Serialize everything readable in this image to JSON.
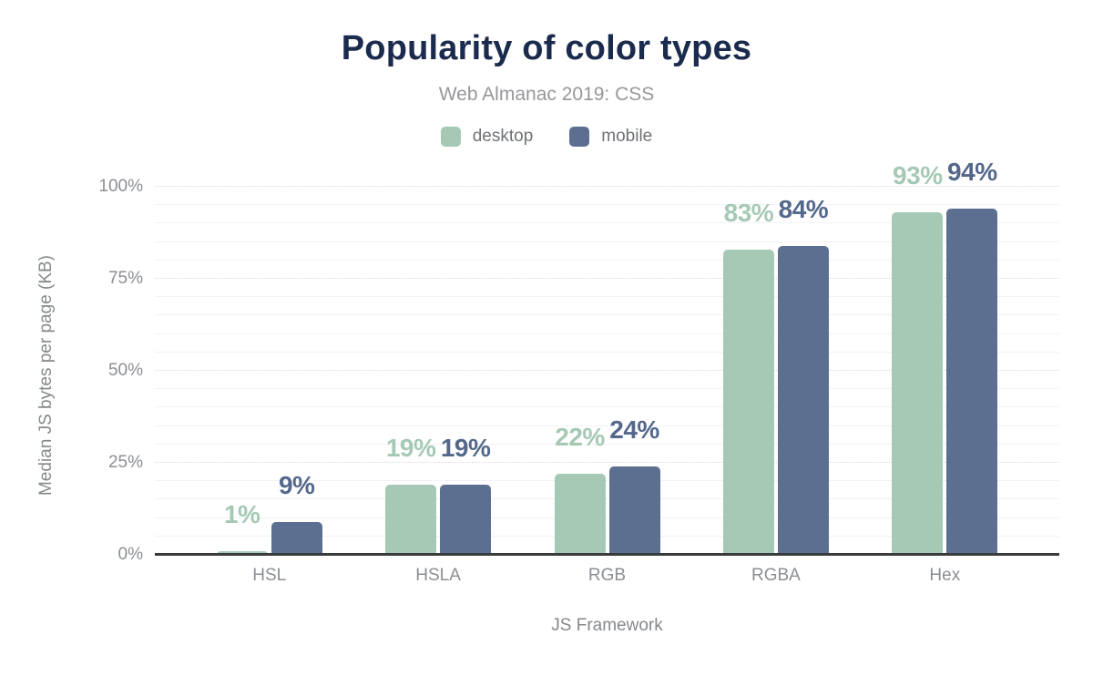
{
  "chart_data": {
    "type": "bar",
    "title": "Popularity of color types",
    "subtitle": "Web Almanac 2019: CSS",
    "categories": [
      "HSL",
      "HSLA",
      "RGB",
      "RGBA",
      "Hex"
    ],
    "series": [
      {
        "name": "desktop",
        "color": "#a5c9b4",
        "label_color": "#a5c9b4",
        "values": [
          1,
          19,
          22,
          83,
          93
        ],
        "labels": [
          "1%",
          "19%",
          "22%",
          "83%",
          "93%"
        ]
      },
      {
        "name": "mobile",
        "color": "#5c6f90",
        "label_color": "#54688c",
        "values": [
          9,
          19,
          24,
          84,
          94
        ],
        "labels": [
          "9%",
          "19%",
          "24%",
          "84%",
          "94%"
        ]
      }
    ],
    "xlabel": "JS Framework",
    "ylabel": "Median JS bytes per page (KB)",
    "ylim": [
      0,
      100
    ],
    "yticks": [
      {
        "value": 0,
        "label": "0%"
      },
      {
        "value": 25,
        "label": "25%"
      },
      {
        "value": 50,
        "label": "50%"
      },
      {
        "value": 75,
        "label": "75%"
      },
      {
        "value": 100,
        "label": "100%"
      }
    ],
    "grid": {
      "minor_interval": 5,
      "major_interval": 25,
      "horizontal": true
    },
    "legend_position": "top"
  },
  "colors": {
    "title": "#1b2b4d",
    "subtitle_text": "#95979b",
    "tick_text": "#8b8e93",
    "axis_title_text": "#85888d",
    "axis_line": "#3a3b3d",
    "background": "#ffffff"
  }
}
